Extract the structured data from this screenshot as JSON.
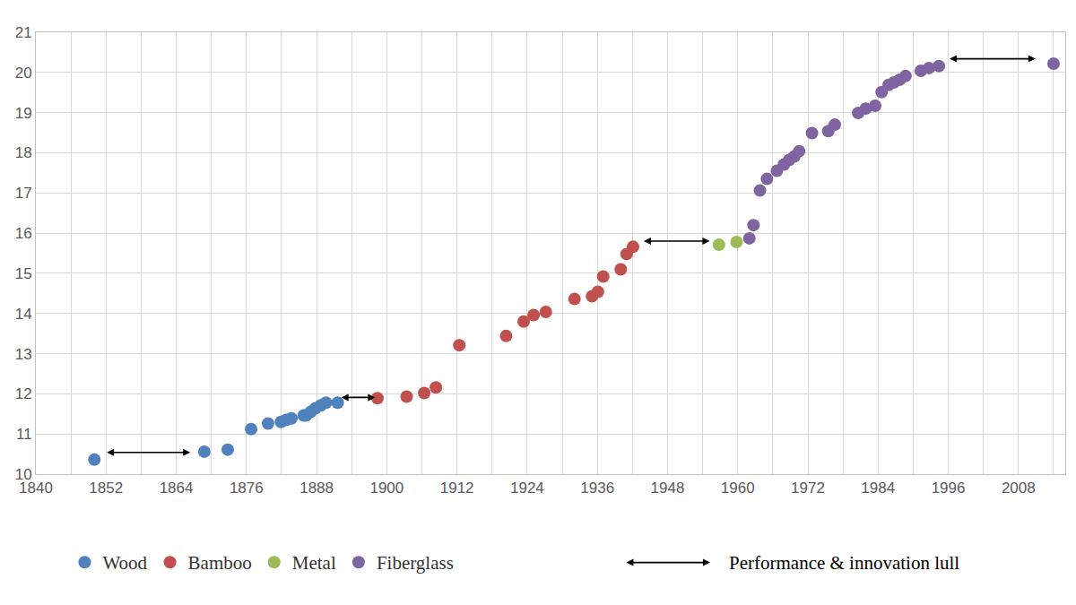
{
  "chart_data": {
    "type": "scatter",
    "marker": "circle",
    "grid": true,
    "legend": "bottom",
    "xlim": [
      1840,
      2016
    ],
    "xticks": [
      1840,
      1852,
      1864,
      1876,
      1888,
      1900,
      1912,
      1924,
      1936,
      1948,
      1960,
      1972,
      1984,
      1996,
      2008
    ],
    "xminor_ticks": [
      1846,
      1858,
      1870,
      1882,
      1894,
      1906,
      1918,
      1930,
      1942,
      1954,
      1966,
      1978,
      1990,
      2002,
      2014
    ],
    "ylim": [
      10,
      21
    ],
    "yticks": [
      10,
      11,
      12,
      13,
      14,
      15,
      16,
      17,
      18,
      19,
      20,
      21
    ],
    "series": [
      {
        "name": "Wood",
        "color": "#4f81bd",
        "x": [
          1850.0,
          1868.8,
          1872.8,
          1876.8,
          1879.7,
          1881.9,
          1882.8,
          1883.7,
          1885.8,
          1886.2,
          1887.0,
          1887.8,
          1888.7,
          1889.6,
          1891.6
        ],
        "values": [
          10.36,
          10.56,
          10.61,
          11.12,
          11.26,
          11.3,
          11.35,
          11.39,
          11.46,
          11.46,
          11.55,
          11.64,
          11.71,
          11.78,
          11.78
        ]
      },
      {
        "name": "Bamboo",
        "color": "#c0504d",
        "x": [
          1898.4,
          1903.4,
          1906.4,
          1908.4,
          1912.4,
          1920.4,
          1923.4,
          1925.1,
          1927.2,
          1932.1,
          1935.1,
          1936.1,
          1937.0,
          1940.0,
          1941.0,
          1942.1
        ],
        "values": [
          11.89,
          11.93,
          12.02,
          12.16,
          13.21,
          13.44,
          13.8,
          13.96,
          14.04,
          14.36,
          14.43,
          14.54,
          14.92,
          15.1,
          15.48,
          15.66
        ]
      },
      {
        "name": "Metal",
        "color": "#9bbb59",
        "x": [
          1956.8,
          1959.8
        ],
        "values": [
          15.71,
          15.78
        ]
      },
      {
        "name": "Fiberglass",
        "color": "#8064a2",
        "x": [
          1962.0,
          1962.7,
          1963.8,
          1965.0,
          1966.7,
          1967.9,
          1968.8,
          1969.7,
          1970.5,
          1972.7,
          1975.5,
          1976.6,
          1980.6,
          1981.9,
          1983.5,
          1984.6,
          1985.8,
          1986.7,
          1987.7,
          1988.7,
          1991.3,
          1992.7,
          1994.4,
          2014.0
        ],
        "values": [
          15.87,
          16.2,
          17.06,
          17.35,
          17.55,
          17.71,
          17.82,
          17.91,
          18.04,
          18.49,
          18.54,
          18.7,
          18.99,
          19.1,
          19.17,
          19.51,
          19.69,
          19.75,
          19.82,
          19.91,
          20.04,
          20.11,
          20.16,
          20.22
        ]
      }
    ],
    "lull_legend": "Performance & innovation lull",
    "lulls": [
      {
        "x0": 1851.9,
        "x1": 1866.4,
        "y": 10.54
      },
      {
        "x0": 1892.0,
        "x1": 1898.0,
        "y": 11.91
      },
      {
        "x0": 1943.7,
        "x1": 1955.2,
        "y": 15.8
      },
      {
        "x0": 1996.0,
        "x1": 2010.9,
        "y": 20.34
      }
    ]
  }
}
